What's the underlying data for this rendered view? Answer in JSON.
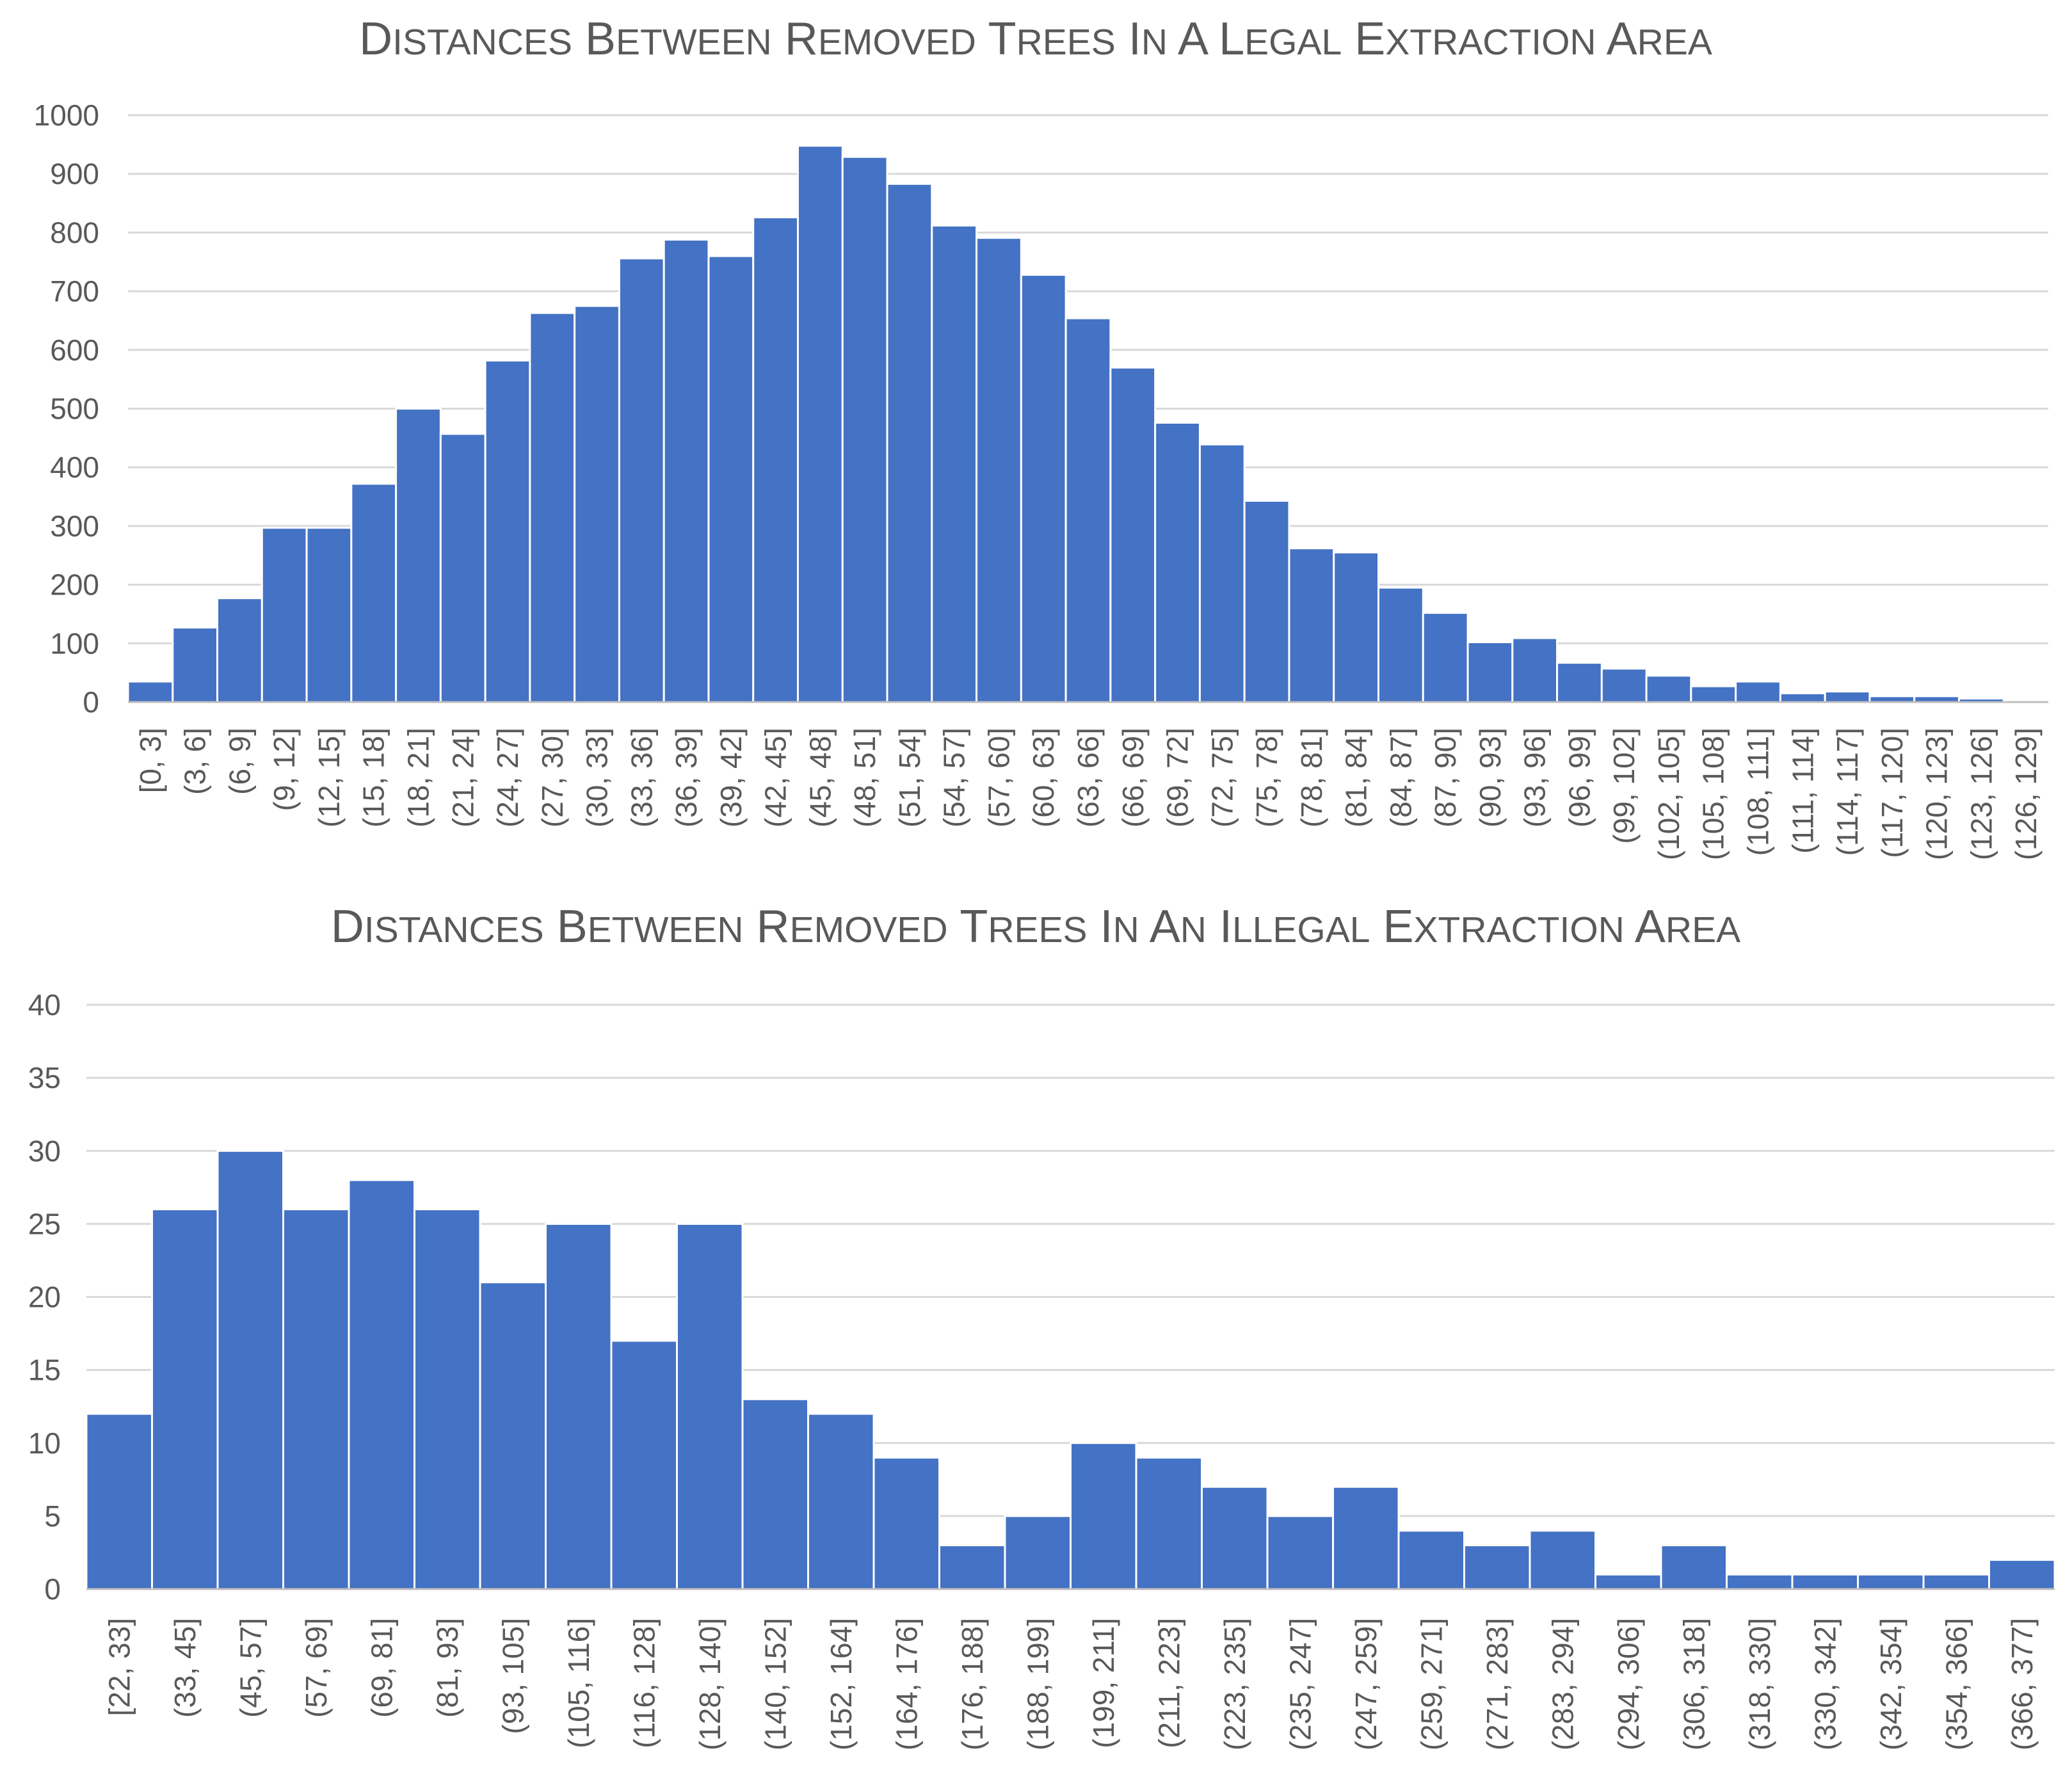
{
  "chart_data": [
    {
      "type": "bar",
      "title": "Distances Between Removed Trees in a Legal Extraction Area",
      "xlabel": "",
      "ylabel": "",
      "ylim": [
        0,
        1000
      ],
      "yticks": [
        0,
        100,
        200,
        300,
        400,
        500,
        600,
        700,
        800,
        900,
        1000
      ],
      "grid": true,
      "categories": [
        "[0, 3]",
        "(3, 6]",
        "(6, 9]",
        "(9, 12]",
        "(12, 15]",
        "(15, 18]",
        "(18, 21]",
        "(21, 24]",
        "(24, 27]",
        "(27, 30]",
        "(30, 33]",
        "(33, 36]",
        "(36, 39]",
        "(39, 42]",
        "(42, 45]",
        "(45, 48]",
        "(48, 51]",
        "(51, 54]",
        "(54, 57]",
        "(57, 60]",
        "(60, 63]",
        "(63, 66]",
        "(66, 69]",
        "(69, 72]",
        "(72, 75]",
        "(75, 78]",
        "(78, 81]",
        "(81, 84]",
        "(84, 87]",
        "(87, 90]",
        "(90, 93]",
        "(93, 96]",
        "(96, 99]",
        "(99, 102]",
        "(102, 105]",
        "(105, 108]",
        "(108, 111]",
        "(111, 114]",
        "(114, 117]",
        "(117, 120]",
        "(120, 123]",
        "(123, 126]",
        "(126, 129]"
      ],
      "values": [
        35,
        127,
        177,
        297,
        297,
        372,
        500,
        457,
        582,
        663,
        675,
        756,
        788,
        760,
        826,
        948,
        929,
        883,
        812,
        791,
        728,
        654,
        570,
        476,
        439,
        343,
        262,
        255,
        195,
        152,
        102,
        109,
        67,
        57,
        45,
        27,
        35,
        15,
        18,
        10,
        10,
        6,
        1
      ]
    },
    {
      "type": "bar",
      "title": "Distances Between Removed Trees in an Illegal Extraction Area",
      "xlabel": "",
      "ylabel": "",
      "ylim": [
        0,
        40
      ],
      "yticks": [
        0,
        5,
        10,
        15,
        20,
        25,
        30,
        35,
        40
      ],
      "grid": true,
      "categories": [
        "[22, 33]",
        "(33, 45]",
        "(45, 57]",
        "(57, 69]",
        "(69, 81]",
        "(81, 93]",
        "(93, 105]",
        "(105, 116]",
        "(116, 128]",
        "(128, 140]",
        "(140, 152]",
        "(152, 164]",
        "(164, 176]",
        "(176, 188]",
        "(188, 199]",
        "(199, 211]",
        "(211, 223]",
        "(223, 235]",
        "(235, 247]",
        "(247, 259]",
        "(259, 271]",
        "(271, 283]",
        "(283, 294]",
        "(294, 306]",
        "(306, 318]",
        "(318, 330]",
        "(330, 342]",
        "(342, 354]",
        "(354, 366]",
        "(366, 377]"
      ],
      "values": [
        12,
        26,
        30,
        26,
        28,
        26,
        21,
        25,
        17,
        25,
        13,
        12,
        9,
        3,
        5,
        10,
        9,
        7,
        5,
        7,
        4,
        3,
        4,
        1,
        3,
        1,
        1,
        1,
        1,
        2
      ]
    }
  ]
}
